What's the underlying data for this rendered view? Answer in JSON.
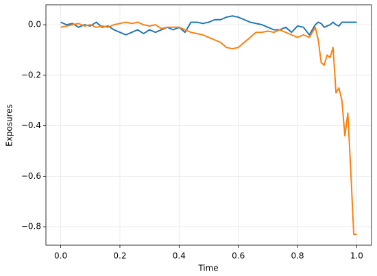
{
  "chart_data": {
    "type": "line",
    "x_label": "Time",
    "y_label": "Exposures",
    "x": [
      0,
      0.02,
      0.04,
      0.06,
      0.08,
      0.1,
      0.12,
      0.14,
      0.16,
      0.18,
      0.2,
      0.22,
      0.24,
      0.26,
      0.28,
      0.3,
      0.32,
      0.34,
      0.36,
      0.38,
      0.4,
      0.42,
      0.44,
      0.46,
      0.48,
      0.5,
      0.52,
      0.54,
      0.56,
      0.58,
      0.6,
      0.62,
      0.64,
      0.66,
      0.68,
      0.7,
      0.72,
      0.74,
      0.76,
      0.78,
      0.8,
      0.82,
      0.84,
      0.86,
      0.87,
      0.88,
      0.89,
      0.9,
      0.91,
      0.92,
      0.93,
      0.94,
      0.95,
      0.96,
      0.97,
      0.98,
      0.99,
      1.0
    ],
    "series": [
      {
        "color": "#1f77b4",
        "values": [
          0.01,
          0.0,
          0.005,
          -0.01,
          0.0,
          -0.005,
          0.01,
          -0.01,
          -0.005,
          -0.02,
          -0.03,
          -0.04,
          -0.03,
          -0.02,
          -0.035,
          -0.02,
          -0.03,
          -0.02,
          -0.01,
          -0.02,
          -0.01,
          -0.03,
          0.01,
          0.01,
          0.005,
          0.01,
          0.02,
          0.02,
          0.03,
          0.035,
          0.03,
          0.02,
          0.01,
          0.005,
          0.0,
          -0.01,
          -0.02,
          -0.02,
          -0.01,
          -0.03,
          -0.005,
          -0.01,
          -0.04,
          0.0,
          0.01,
          0.005,
          -0.01,
          -0.005,
          0.0,
          0.01,
          0.0,
          -0.005,
          0.01,
          0.01,
          0.01,
          0.01,
          0.01,
          0.01
        ]
      },
      {
        "color": "#ff7f0e",
        "values": [
          -0.01,
          -0.005,
          0.0,
          0.005,
          -0.005,
          0.0,
          -0.01,
          -0.005,
          -0.01,
          0.0,
          0.005,
          0.01,
          0.005,
          0.01,
          0.0,
          -0.005,
          0.0,
          -0.015,
          -0.01,
          -0.01,
          -0.01,
          -0.02,
          -0.03,
          -0.035,
          -0.04,
          -0.05,
          -0.06,
          -0.07,
          -0.09,
          -0.095,
          -0.09,
          -0.07,
          -0.05,
          -0.03,
          -0.03,
          -0.025,
          -0.03,
          -0.02,
          -0.03,
          -0.04,
          -0.05,
          -0.04,
          -0.05,
          -0.01,
          -0.06,
          -0.15,
          -0.16,
          -0.12,
          -0.13,
          -0.09,
          -0.27,
          -0.25,
          -0.3,
          -0.44,
          -0.35,
          -0.58,
          -0.83,
          -0.83
        ]
      }
    ],
    "xlim": [
      -0.05,
      1.05
    ],
    "ylim": [
      -0.873,
      0.079
    ],
    "xticks": [
      {
        "value": 0,
        "label": "0.0"
      },
      0.2,
      0.4,
      0.6,
      0.8,
      {
        "value": 1,
        "label": "1.0"
      }
    ],
    "yticks": [
      {
        "value": -0.8,
        "label": "−0.8"
      },
      {
        "value": -0.6,
        "label": "−0.6"
      },
      {
        "value": -0.4,
        "label": "−0.4"
      },
      {
        "value": -0.2,
        "label": "−0.2"
      },
      {
        "value": 0,
        "label": "0.0"
      }
    ],
    "grid": true
  }
}
